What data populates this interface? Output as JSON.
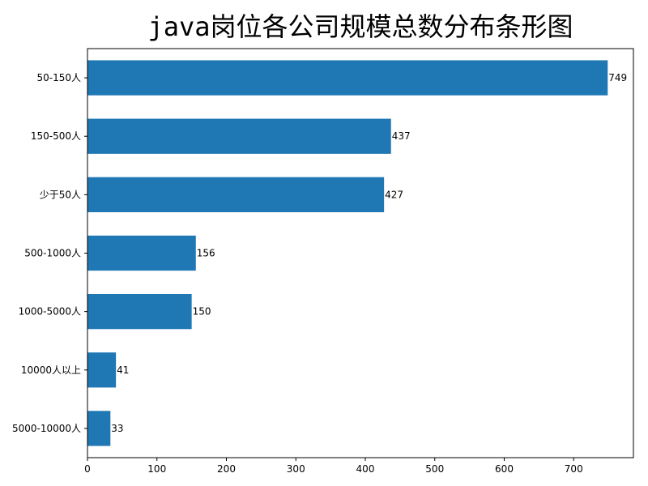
{
  "chart_data": {
    "type": "bar",
    "orientation": "horizontal",
    "title": "java岗位各公司规模总数分布条形图",
    "categories": [
      "50-150人",
      "150-500人",
      "少于50人",
      "500-1000人",
      "1000-5000人",
      "10000人以上",
      "5000-10000人"
    ],
    "values": [
      749,
      437,
      427,
      156,
      150,
      41,
      33
    ],
    "xlabel": "",
    "ylabel": "",
    "xlim": [
      0,
      786
    ],
    "xticks": [
      0,
      100,
      200,
      300,
      400,
      500,
      600,
      700
    ],
    "grid": false,
    "bar_color": "#1f77b4",
    "data_labels": true
  }
}
